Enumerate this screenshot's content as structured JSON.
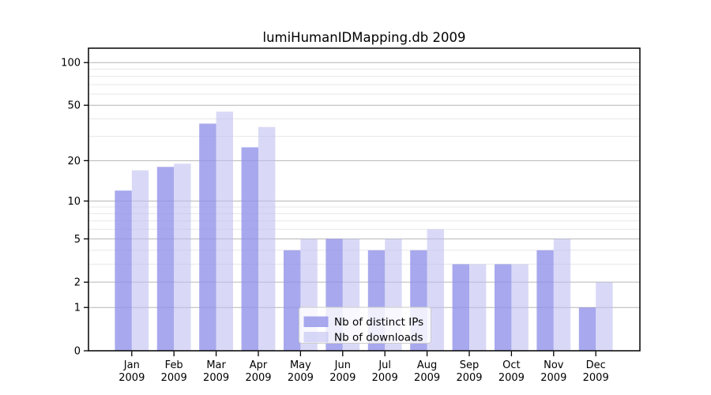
{
  "title": "lumiHumanIDMapping.db 2009",
  "chart_data": {
    "type": "bar",
    "title": "lumiHumanIDMapping.db 2009",
    "categories": [
      "Jan 2009",
      "Feb 2009",
      "Mar 2009",
      "Apr 2009",
      "May 2009",
      "Jun 2009",
      "Jul 2009",
      "Aug 2009",
      "Sep 2009",
      "Oct 2009",
      "Nov 2009",
      "Dec 2009"
    ],
    "series": [
      {
        "name": "Nb of distinct IPs",
        "color": "#a7a7ed",
        "base_color": "#9292ea",
        "opacity": 0.8,
        "values": [
          12,
          18,
          37,
          25,
          4,
          5,
          4,
          4,
          3,
          3,
          4,
          1
        ]
      },
      {
        "name": "Nb of downloads",
        "color": "#d9d9f7",
        "base_color": "#bdbdf2",
        "opacity": 0.58,
        "values": [
          17,
          19,
          45,
          35,
          5,
          5,
          5,
          6,
          3,
          3,
          5,
          2
        ]
      }
    ],
    "xlabel": "",
    "ylabel": "",
    "yscale": "log1p",
    "ylim": [
      0,
      126
    ],
    "yticks": [
      0,
      1,
      2,
      5,
      10,
      20,
      50,
      100
    ],
    "minor_yticks": [
      3,
      4,
      6,
      7,
      8,
      9,
      30,
      40,
      60,
      70,
      80,
      90
    ],
    "grid": true,
    "legend_position": "lower-center",
    "axis_color": "#000000",
    "major_grid_color": "#b6b6b6",
    "minor_grid_color": "#e7e7e7",
    "background_color": "#ffffff"
  }
}
